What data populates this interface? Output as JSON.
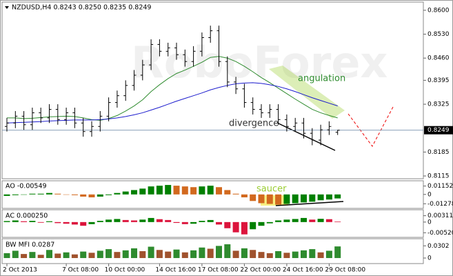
{
  "chart_data": [
    {
      "type": "candlestick",
      "title": "NZDUSD,H4 0.8243 0.8250 0.8235 0.8249",
      "categories": [
        "2 Oct 2013",
        null,
        null,
        null,
        null,
        null,
        null,
        "7 Oct 08:00",
        null,
        null,
        null,
        null,
        "10 Oct 00:00",
        null,
        null,
        null,
        null,
        null,
        "14 Oct 16:00",
        null,
        null,
        null,
        null,
        "17 Oct 08:00",
        null,
        null,
        null,
        null,
        "22 Oct 00:00",
        null,
        null,
        null,
        null,
        "24 Oct 16:00",
        null,
        null,
        null,
        null,
        "29 Oct 08:00",
        null
      ],
      "open": [
        0.826,
        0.827,
        0.829,
        0.8265,
        0.83,
        0.8285,
        0.831,
        0.828,
        0.83,
        0.827,
        0.8245,
        0.826,
        0.829,
        0.833,
        0.835,
        0.838,
        0.841,
        0.844,
        0.85,
        0.848,
        0.849,
        0.847,
        0.845,
        0.848,
        0.852,
        0.854,
        0.845,
        0.839,
        0.837,
        0.833,
        0.831,
        0.83,
        0.831,
        0.828,
        0.826,
        0.827,
        0.824,
        0.822,
        0.825,
        0.8243
      ],
      "high": [
        0.8285,
        0.8305,
        0.8305,
        0.8315,
        0.8315,
        0.8325,
        0.8325,
        0.8315,
        0.8315,
        0.8285,
        0.8275,
        0.8305,
        0.8345,
        0.8365,
        0.8395,
        0.8425,
        0.8455,
        0.8515,
        0.8515,
        0.8505,
        0.8505,
        0.8485,
        0.8495,
        0.8535,
        0.8555,
        0.8555,
        0.8465,
        0.8405,
        0.8385,
        0.8345,
        0.8325,
        0.8325,
        0.8325,
        0.8295,
        0.8285,
        0.8285,
        0.8255,
        0.8265,
        0.8275,
        0.825
      ],
      "low": [
        0.8245,
        0.8255,
        0.825,
        0.825,
        0.827,
        0.827,
        0.8265,
        0.8265,
        0.8255,
        0.823,
        0.823,
        0.8245,
        0.8275,
        0.8315,
        0.8335,
        0.8365,
        0.8395,
        0.8425,
        0.8465,
        0.8465,
        0.8455,
        0.8435,
        0.8435,
        0.8465,
        0.8505,
        0.8435,
        0.8375,
        0.8355,
        0.8315,
        0.8295,
        0.8285,
        0.8285,
        0.8265,
        0.8245,
        0.8245,
        0.8225,
        0.8205,
        0.8205,
        0.8235,
        0.8235
      ],
      "close": [
        0.827,
        0.829,
        0.8265,
        0.83,
        0.8285,
        0.831,
        0.828,
        0.83,
        0.827,
        0.8245,
        0.826,
        0.829,
        0.833,
        0.835,
        0.838,
        0.841,
        0.844,
        0.85,
        0.848,
        0.849,
        0.847,
        0.845,
        0.848,
        0.852,
        0.854,
        0.845,
        0.839,
        0.837,
        0.833,
        0.831,
        0.83,
        0.831,
        0.828,
        0.826,
        0.827,
        0.824,
        0.822,
        0.825,
        0.826,
        0.8249
      ],
      "color": "#000000",
      "series": [
        {
          "color": "#2e8b2e",
          "values": [
            0.8285,
            0.8285,
            0.8283,
            0.8284,
            0.8286,
            0.8288,
            0.8289,
            0.829,
            0.8289,
            0.8285,
            0.828,
            0.8278,
            0.8283,
            0.8292,
            0.8305,
            0.832,
            0.8338,
            0.8362,
            0.8382,
            0.84,
            0.8415,
            0.8425,
            0.8436,
            0.8448,
            0.8462,
            0.8465,
            0.846,
            0.845,
            0.8436,
            0.842,
            0.8403,
            0.8388,
            0.8372,
            0.8356,
            0.834,
            0.8325,
            0.831,
            0.83,
            0.8292,
            0.8285
          ]
        },
        {
          "color": "#1a1acd",
          "values": [
            0.827,
            0.8271,
            0.8272,
            0.8273,
            0.8274,
            0.8276,
            0.8277,
            0.8278,
            0.8279,
            0.8279,
            0.8279,
            0.828,
            0.8282,
            0.8285,
            0.8289,
            0.8294,
            0.83,
            0.8308,
            0.8316,
            0.8325,
            0.8334,
            0.8342,
            0.835,
            0.8358,
            0.8367,
            0.8374,
            0.838,
            0.8385,
            0.8387,
            0.8388,
            0.8386,
            0.8382,
            0.8377,
            0.837,
            0.8362,
            0.8353,
            0.8344,
            0.8336,
            0.8328,
            0.832
          ]
        }
      ],
      "ylim": [
        0.8109,
        0.8622
      ],
      "yticks": [
        {
          "value": 0.86,
          "label": "0.8600"
        },
        {
          "value": 0.853,
          "label": "0.8530"
        },
        {
          "value": 0.846,
          "label": "0.8460"
        },
        0.8395,
        0.8325,
        0.8185,
        0.8115
      ],
      "current_price": 0.8249,
      "annotations": [
        "angulation",
        "divergence"
      ]
    },
    {
      "type": "bar",
      "label": "AO -0.00549",
      "up_color": "#008000",
      "down_color": "#d2691e",
      "values": [
        -0.002,
        -0.001,
        0.0,
        0.001,
        0.001,
        0.002,
        0.001,
        0.0,
        -0.001,
        -0.003,
        -0.004,
        -0.003,
        -0.001,
        0.002,
        0.004,
        0.006,
        0.008,
        0.011,
        0.012,
        0.013,
        0.012,
        0.011,
        0.01,
        0.011,
        0.012,
        0.01,
        0.006,
        0.001,
        -0.004,
        -0.009,
        -0.012,
        -0.013,
        -0.014,
        -0.013,
        -0.012,
        -0.011,
        -0.01,
        -0.008,
        -0.007,
        -0.00549
      ],
      "ylim": [
        -0.0182,
        0.0178
      ],
      "yticks": [
        0.01152,
        0,
        -0.01278
      ],
      "annotations": [
        "saucer"
      ]
    },
    {
      "type": "bar",
      "label": "AC 0.000250",
      "up_color": "#008000",
      "down_color": "#dc143c",
      "values": [
        0.0005,
        0.0008,
        0.0004,
        0.0006,
        -0.0003,
        0.0004,
        -0.0005,
        -0.0008,
        -0.0012,
        -0.0018,
        -0.001,
        0.0006,
        0.0012,
        0.0015,
        0.001,
        0.0008,
        0.0012,
        0.002,
        0.0014,
        0.001,
        -0.0004,
        -0.001,
        -0.0008,
        0.0006,
        0.001,
        -0.0012,
        -0.003,
        -0.005,
        -0.006,
        -0.0035,
        -0.0018,
        -0.0006,
        0.0008,
        0.0012,
        0.0015,
        0.002,
        0.0012,
        0.0016,
        0.0014,
        0.00025
      ],
      "ylim": [
        -0.00712,
        0.00567
      ],
      "yticks": [
        0.00311,
        {
          "value": -0.0052,
          "label": "-0.00520"
        },
        0
      ]
    },
    {
      "type": "bar",
      "label": "BW MFI 0.0287",
      "up_color": "#2e8b2e",
      "down_color": "#a0522d",
      "values": [
        0.012,
        0.018,
        0.01,
        0.015,
        0.008,
        0.02,
        0.011,
        0.014,
        0.009,
        0.016,
        0.013,
        0.018,
        0.022,
        0.015,
        0.019,
        0.024,
        0.017,
        0.028,
        0.02,
        0.016,
        0.021,
        0.014,
        0.019,
        0.026,
        0.023,
        0.03,
        0.034,
        0.018,
        0.024,
        0.02,
        0.015,
        0.012,
        0.017,
        0.013,
        0.016,
        0.019,
        0.022,
        0.014,
        0.018,
        0.0287
      ],
      "ylim": [
        -0.012,
        0.046
      ],
      "yticks": [
        0.0302,
        0
      ]
    }
  ]
}
